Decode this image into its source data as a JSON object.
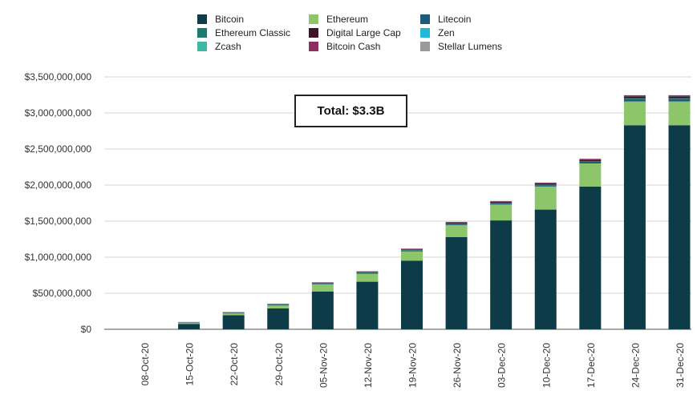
{
  "chart_data": {
    "type": "bar",
    "stacked": true,
    "categories": [
      "08-Oct-20",
      "15-Oct-20",
      "22-Oct-20",
      "29-Oct-20",
      "05-Nov-20",
      "12-Nov-20",
      "19-Nov-20",
      "26-Nov-20",
      "03-Dec-20",
      "10-Dec-20",
      "17-Dec-20",
      "24-Dec-20",
      "31-Dec-20"
    ],
    "series": [
      {
        "name": "Bitcoin",
        "color": "#0d3b47",
        "values": [
          0,
          75000000,
          195000000,
          290000000,
          525000000,
          660000000,
          950000000,
          1280000000,
          1510000000,
          1660000000,
          1980000000,
          2830000000,
          2830000000
        ]
      },
      {
        "name": "Ethereum",
        "color": "#8dc56b",
        "values": [
          0,
          12000000,
          25000000,
          40000000,
          100000000,
          110000000,
          130000000,
          165000000,
          220000000,
          320000000,
          320000000,
          330000000,
          330000000
        ]
      },
      {
        "name": "Litecoin",
        "color": "#1b5c7a",
        "values": [
          0,
          4000000,
          6000000,
          8000000,
          10000000,
          12000000,
          12000000,
          14000000,
          15000000,
          18000000,
          22000000,
          32000000,
          32000000
        ]
      },
      {
        "name": "Ethereum Classic",
        "color": "#1a7a6c",
        "values": [
          0,
          3000000,
          4000000,
          5000000,
          5000000,
          6000000,
          7000000,
          8000000,
          9000000,
          9000000,
          10000000,
          14000000,
          14000000
        ]
      },
      {
        "name": "Digital Large Cap",
        "color": "#3d1527",
        "values": [
          0,
          3000000,
          4000000,
          5000000,
          6000000,
          8000000,
          10000000,
          12000000,
          14000000,
          16000000,
          18000000,
          22000000,
          22000000
        ]
      },
      {
        "name": "Zen",
        "color": "#24b8d6",
        "values": [
          0,
          1000000,
          1000000,
          1000000,
          1000000,
          1000000,
          1000000,
          1000000,
          1000000,
          1000000,
          1000000,
          1000000,
          1000000
        ]
      },
      {
        "name": "Zcash",
        "color": "#3fb8a1",
        "values": [
          0,
          1000000,
          1000000,
          1000000,
          1000000,
          1000000,
          1000000,
          1000000,
          1000000,
          1000000,
          1000000,
          1000000,
          1000000
        ]
      },
      {
        "name": "Bitcoin Cash",
        "color": "#8a2f5e",
        "values": [
          0,
          2000000,
          3000000,
          4000000,
          5000000,
          6000000,
          7000000,
          8000000,
          9000000,
          10000000,
          12000000,
          15000000,
          15000000
        ]
      },
      {
        "name": "Stellar Lumens",
        "color": "#9a9a9a",
        "values": [
          0,
          1000000,
          1000000,
          1000000,
          1000000,
          1000000,
          1000000,
          1000000,
          1000000,
          1000000,
          1000000,
          2000000,
          2000000
        ]
      }
    ],
    "ylim": [
      0,
      3500000000
    ],
    "yticks": [
      0,
      500000000,
      1000000000,
      1500000000,
      2000000000,
      2500000000,
      3000000000,
      3500000000
    ],
    "ytick_labels": [
      "$0",
      "$500,000,000",
      "$1,000,000,000",
      "$1,500,000,000",
      "$2,000,000,000",
      "$2,500,000,000",
      "$3,000,000,000",
      "$3,500,000,000"
    ],
    "grid": true,
    "legend_position": "top",
    "annotation": "Total: $3.3B",
    "title": "",
    "xlabel": "",
    "ylabel": ""
  },
  "legend": {
    "items": [
      {
        "label": "Bitcoin",
        "color": "#0d3b47"
      },
      {
        "label": "Ethereum Classic",
        "color": "#1a7a6c"
      },
      {
        "label": "Zcash",
        "color": "#3fb8a1"
      },
      {
        "label": "Ethereum",
        "color": "#8dc56b"
      },
      {
        "label": "Digital Large Cap",
        "color": "#3d1527"
      },
      {
        "label": "Bitcoin Cash",
        "color": "#8a2f5e"
      },
      {
        "label": "Litecoin",
        "color": "#1b5c7a"
      },
      {
        "label": "Zen",
        "color": "#24b8d6"
      },
      {
        "label": "Stellar Lumens",
        "color": "#9a9a9a"
      }
    ]
  }
}
